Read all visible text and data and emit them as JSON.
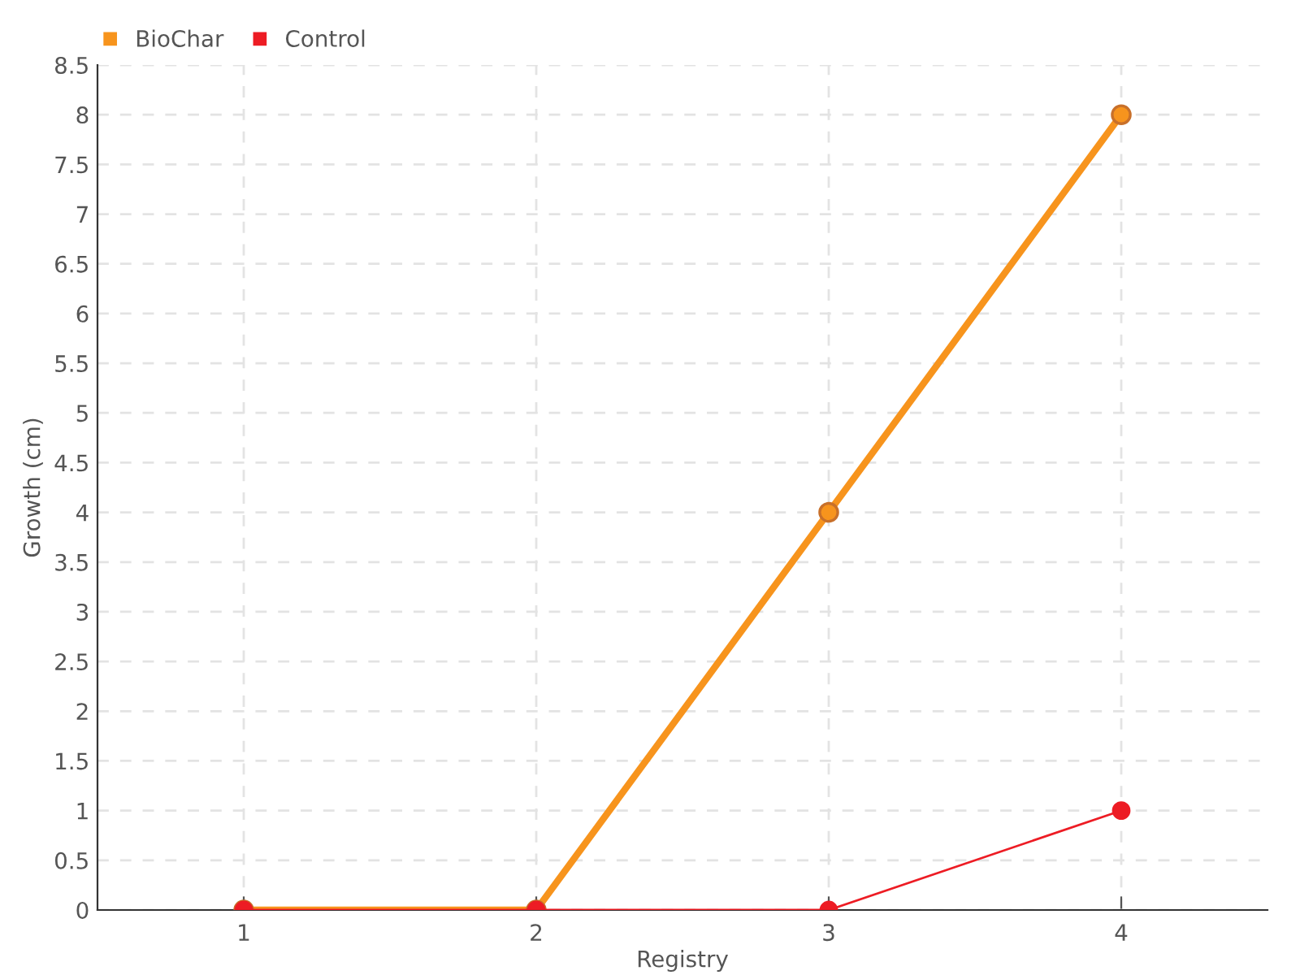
{
  "chart_data": {
    "type": "line",
    "xlabel": "Registry",
    "ylabel": "Growth (cm)",
    "x": [
      1,
      2,
      3,
      4
    ],
    "series": [
      {
        "name": "BioChar",
        "color": "#f7941d",
        "values": [
          0,
          0,
          4,
          8
        ]
      },
      {
        "name": "Control",
        "color": "#ed1c24",
        "values": [
          0,
          0,
          0,
          1
        ]
      }
    ],
    "xlim": [
      0.5,
      4.5
    ],
    "xticks": [
      1,
      2,
      3,
      4
    ],
    "ylim": [
      0,
      8.5
    ],
    "yticks": [
      0,
      0.5,
      1,
      1.5,
      2,
      2.5,
      3,
      3.5,
      4,
      4.5,
      5,
      5.5,
      6,
      6.5,
      7,
      7.5,
      8,
      8.5
    ],
    "grid": true,
    "legend": "top left",
    "marker": "circle",
    "line_style": "solid"
  }
}
